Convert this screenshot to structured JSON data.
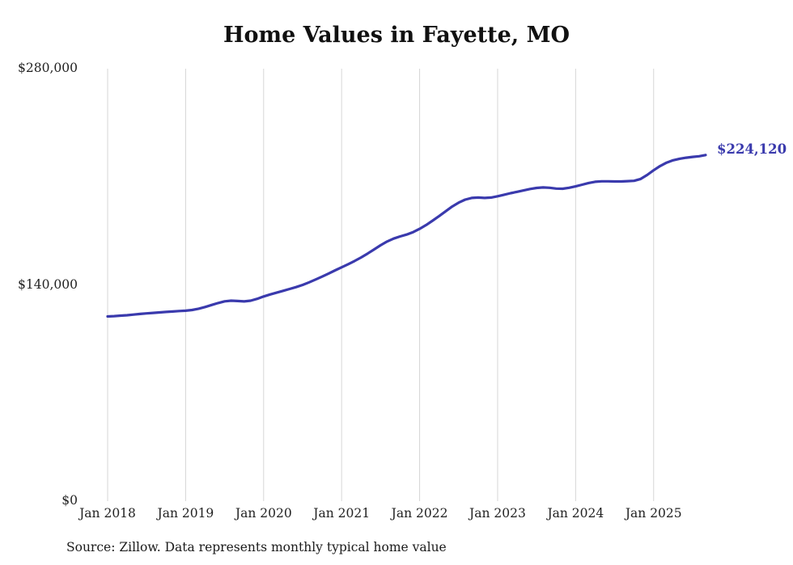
{
  "title": "Home Values in Fayette, MO",
  "source_note": "Source: Zillow. Data represents monthly typical home value",
  "chart_data": {
    "type": "line",
    "title": "Home Values in Fayette, MO",
    "xlabel": "",
    "ylabel": "",
    "ylim": [
      0,
      280000
    ],
    "grid": "vertical-only",
    "grid_color": "#d6d6d6",
    "legend": "none",
    "y_ticks": [
      {
        "value": 0,
        "label": "$0"
      },
      {
        "value": 140000,
        "label": "$140,000"
      },
      {
        "value": 280000,
        "label": "$280,000"
      }
    ],
    "x_tick_labels": [
      "Jan 2018",
      "Jan 2019",
      "Jan 2020",
      "Jan 2021",
      "Jan 2022",
      "Jan 2023",
      "Jan 2024",
      "Jan 2025"
    ],
    "x_tick_month_indices": [
      0,
      12,
      24,
      36,
      48,
      60,
      72,
      84
    ],
    "start_month": "2018-01",
    "frequency": "monthly",
    "last_value_label": "$224,120",
    "series": [
      {
        "name": "Typical home value",
        "color": "#3a3aad",
        "values": [
          119600,
          119800,
          120100,
          120400,
          120800,
          121200,
          121600,
          121900,
          122200,
          122500,
          122800,
          123100,
          123300,
          123800,
          124600,
          125700,
          127000,
          128300,
          129400,
          129800,
          129600,
          129300,
          129800,
          131000,
          132500,
          133800,
          135000,
          136200,
          137400,
          138600,
          140000,
          141700,
          143500,
          145400,
          147400,
          149400,
          151400,
          153400,
          155500,
          157800,
          160300,
          163000,
          165700,
          168100,
          170000,
          171400,
          172600,
          174200,
          176300,
          178800,
          181600,
          184600,
          187700,
          190700,
          193300,
          195200,
          196300,
          196600,
          196300,
          196600,
          197400,
          198400,
          199400,
          200300,
          201200,
          202100,
          202800,
          203100,
          202900,
          202400,
          202300,
          202900,
          203800,
          204900,
          206000,
          206800,
          207100,
          207100,
          207000,
          207000,
          207200,
          207400,
          208600,
          211200,
          214200,
          217000,
          219200,
          220700,
          221700,
          222400,
          222900,
          223300,
          224120
        ]
      }
    ]
  }
}
